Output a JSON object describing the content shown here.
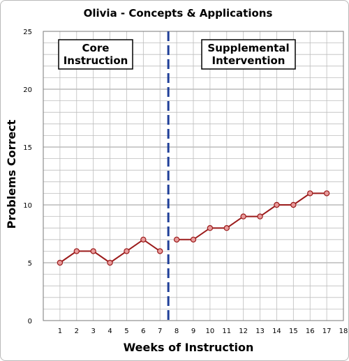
{
  "chart_data": {
    "type": "line",
    "title": "Olivia - Concepts & Applications",
    "xlabel": "Weeks of Instruction",
    "ylabel": "Problems Correct",
    "xlim": [
      0,
      18
    ],
    "ylim": [
      0,
      25
    ],
    "x_ticks": [
      1,
      2,
      3,
      4,
      5,
      6,
      7,
      8,
      9,
      10,
      11,
      12,
      13,
      14,
      15,
      16,
      17,
      18
    ],
    "y_ticks": [
      0,
      5,
      10,
      15,
      20,
      25
    ],
    "grid": true,
    "phase_line_x": 7.5,
    "phases": [
      {
        "label_lines": [
          "Core",
          "Instruction"
        ],
        "x": [
          1,
          2,
          3,
          4,
          5,
          6,
          7
        ],
        "y": [
          5,
          6,
          6,
          5,
          6,
          7,
          6
        ]
      },
      {
        "label_lines": [
          "Supplemental",
          "Intervention"
        ],
        "x": [
          8,
          9,
          10,
          11,
          12,
          13,
          14,
          15,
          16,
          17
        ],
        "y": [
          7,
          7,
          8,
          8,
          9,
          9,
          10,
          10,
          11,
          11
        ]
      }
    ],
    "colors": {
      "line": "#9b1b1b",
      "marker_fill": "#e79a9a",
      "phase_line": "#1f3f99",
      "grid": "#bdbdbd"
    }
  }
}
